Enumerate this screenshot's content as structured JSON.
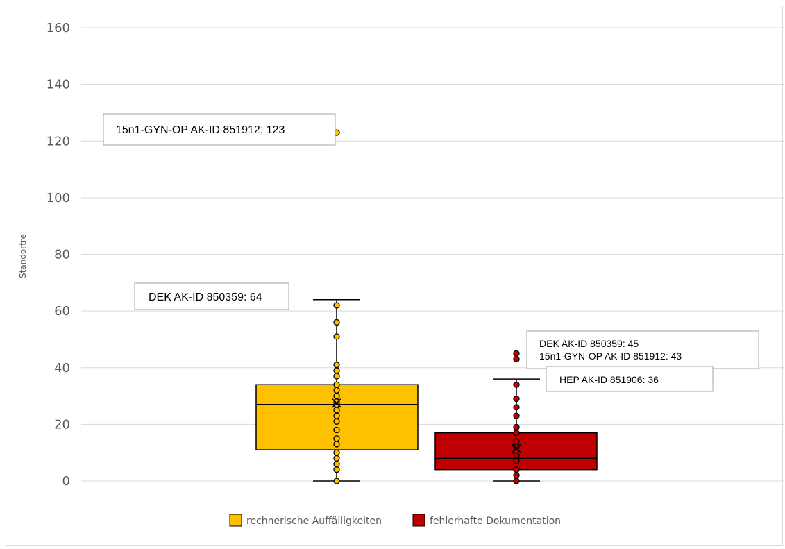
{
  "chart_data": {
    "type": "box",
    "xlabel": "",
    "ylabel": "Standortre",
    "ylim": [
      0,
      160
    ],
    "yticks": [
      "0",
      "20",
      "40",
      "60",
      "80",
      "100",
      "120",
      "140",
      "160"
    ],
    "grid": true,
    "legend_position": "bottom",
    "series": [
      {
        "name": "rechnerische Auffälligkeiten",
        "color": "#FFC000",
        "min": 0,
        "q1": 11,
        "median": 27,
        "q3": 34,
        "whisker_high": 64,
        "mean": 27.5,
        "points": [
          0,
          4,
          6,
          8,
          10,
          13,
          15,
          18,
          21,
          23,
          25,
          27,
          28,
          30,
          32,
          34,
          37,
          39,
          41,
          51,
          56,
          62,
          123
        ]
      },
      {
        "name": "fehlerhafte Dokumentation",
        "color": "#C00000",
        "min": 0,
        "q1": 4,
        "median": 8,
        "q3": 17,
        "whisker_high": 36,
        "mean": 11.5,
        "points": [
          0,
          2,
          4,
          7,
          9,
          12,
          14,
          17,
          19,
          23,
          26,
          29,
          34,
          43,
          45
        ]
      }
    ],
    "annotations": [
      "15n1-GYN-OP AK-ID 851912: 123",
      "DEK AK-ID 850359: 64",
      "DEK AK-ID 850359: 45",
      "15n1-GYN-OP AK-ID 851912: 43",
      "HEP AK-ID 851906: 36"
    ]
  }
}
